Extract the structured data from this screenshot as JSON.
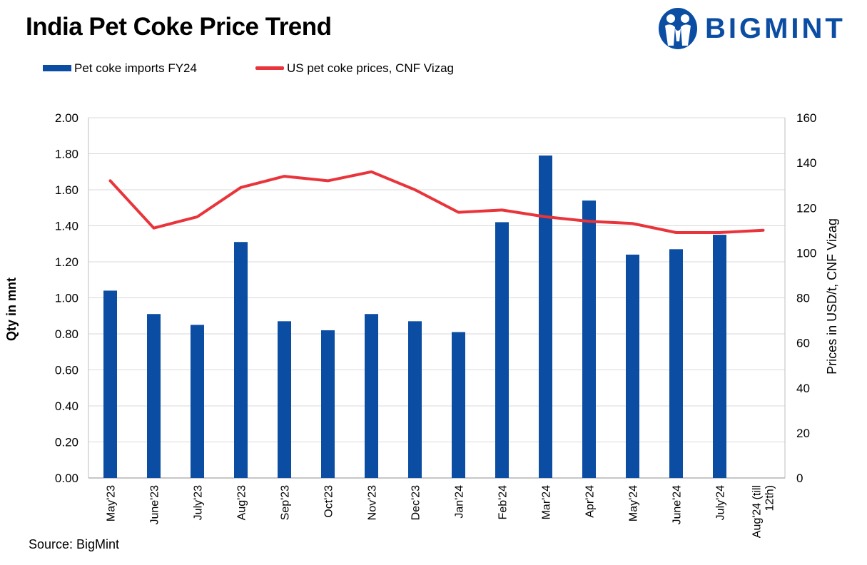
{
  "title": "India Pet Coke Price Trend",
  "logo": {
    "text": "BIGMINT",
    "icon": "bigmint-people-logo"
  },
  "source": "Source: BigMint",
  "colors": {
    "bar": "#0a4da2",
    "line": "#e8343a",
    "grid": "#d9d9d9",
    "brand": "#0a4da2"
  },
  "chart_data": {
    "type": "bar+line",
    "categories": [
      "May'23",
      "June'23",
      "July'23",
      "Aug'23",
      "Sep'23",
      "Oct'23",
      "Nov'23",
      "Dec'23",
      "Jan'24",
      "Feb'24",
      "Mar'24",
      "Apr'24",
      "May'24",
      "June'24",
      "July'24",
      "Aug'24 (till 12th)"
    ],
    "series": [
      {
        "name": "Pet coke imports FY24",
        "type": "bar",
        "axis": "left",
        "values": [
          1.04,
          0.91,
          0.85,
          1.31,
          0.87,
          0.82,
          0.91,
          0.87,
          0.81,
          1.42,
          1.79,
          1.54,
          1.24,
          1.27,
          1.35,
          null
        ]
      },
      {
        "name": "US pet coke prices, CNF Vizag",
        "type": "line",
        "axis": "right",
        "values": [
          132,
          111,
          116,
          129,
          134,
          132,
          136,
          128,
          118,
          119,
          116,
          114,
          113,
          109,
          109,
          110
        ]
      }
    ],
    "ylabel": "Qty in mnt",
    "y2label": "Prices in USD/t, CNF Vizag",
    "ylim": [
      0,
      2.0
    ],
    "y2lim": [
      0,
      160
    ],
    "yticks": [
      "2.00",
      "1.80",
      "1.60",
      "1.40",
      "1.20",
      "1.00",
      "0.80",
      "0.60",
      "0.40",
      "0.20",
      "0.00"
    ],
    "y2ticks": [
      "160",
      "140",
      "120",
      "100",
      "80",
      "60",
      "40",
      "20",
      "0"
    ],
    "grid": true,
    "legend_position": "top-left"
  }
}
